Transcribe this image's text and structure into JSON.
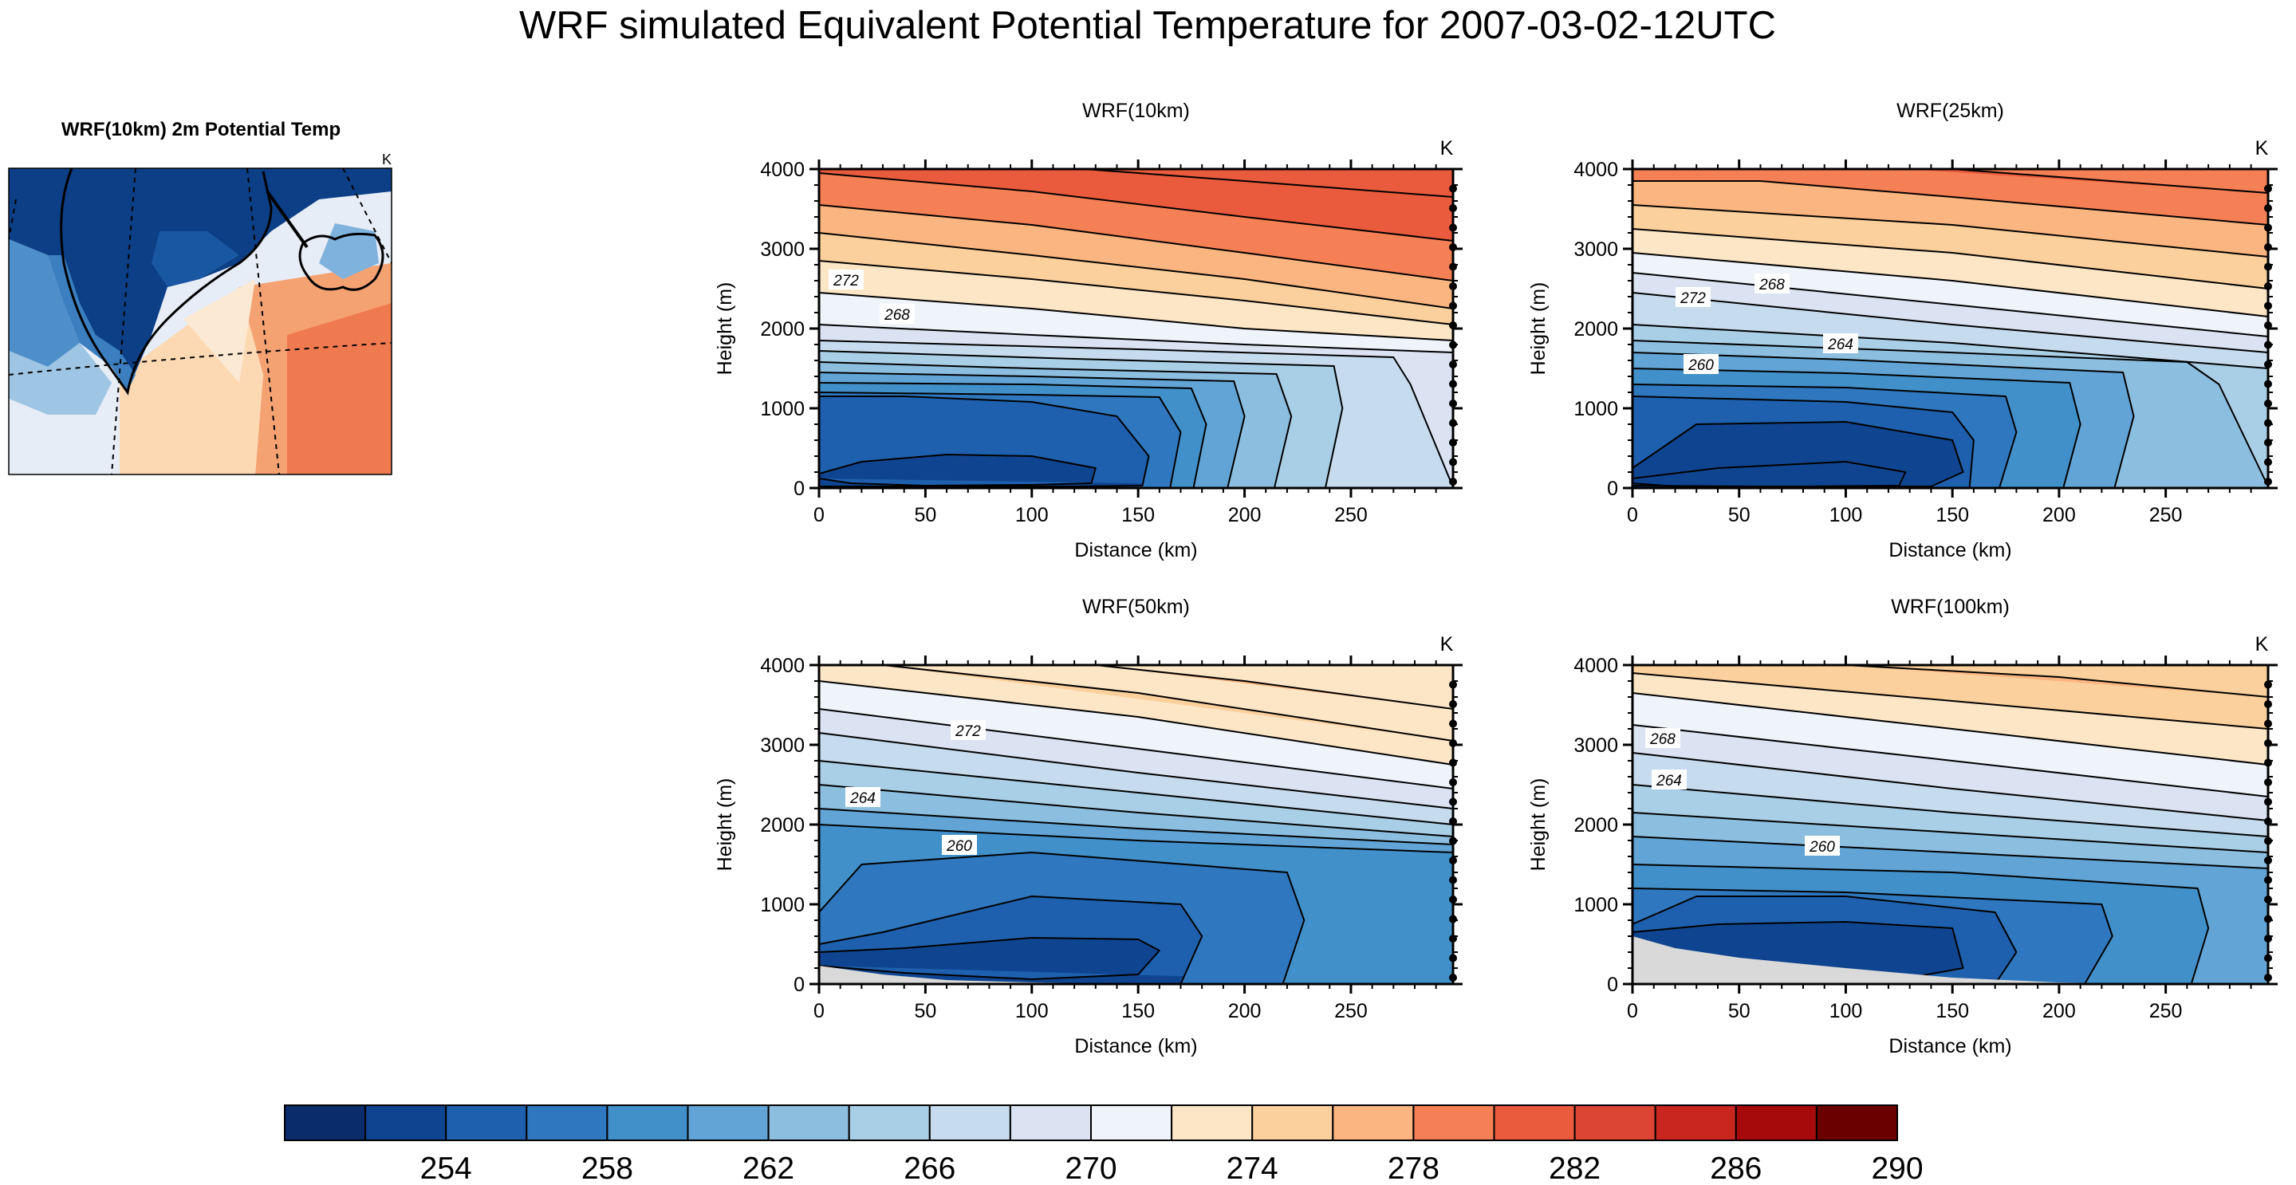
{
  "title": "WRF simulated Equivalent Potential Temperature for 2007-03-02-12UTC",
  "map": {
    "title": "WRF(10km) 2m Potential Temp",
    "unit": "K"
  },
  "chart_data": [
    {
      "type": "contour",
      "title": "WRF(10km)",
      "unit": "K",
      "xlabel": "Distance (km)",
      "ylabel": "Height (m)",
      "xlim": [
        0,
        298
      ],
      "ylim": [
        0,
        4000
      ],
      "xticks": [
        "0",
        "50",
        "100",
        "150",
        "200",
        "250"
      ],
      "yticks": [
        "0",
        "1000",
        "2000",
        "3000",
        "4000"
      ],
      "contour_labels": [
        "272",
        "268"
      ],
      "surface_profile": [
        [
          0,
          0
        ],
        [
          298,
          0
        ]
      ],
      "levels": [
        {
          "value": 254,
          "x": [
            0,
            20,
            60,
            100,
            130,
            128,
            100,
            50,
            15,
            0
          ],
          "y": [
            180,
            330,
            420,
            400,
            250,
            60,
            40,
            30,
            60,
            120
          ]
        },
        {
          "value": 256,
          "x": [
            0,
            40,
            100,
            140,
            155,
            152,
            120,
            60,
            0
          ],
          "y": [
            1150,
            1150,
            1080,
            900,
            400,
            30,
            20,
            20,
            20
          ]
        },
        {
          "value": 258,
          "x": [
            0,
            100,
            160,
            170,
            165
          ],
          "y": [
            1200,
            1170,
            1140,
            700,
            0
          ]
        },
        {
          "value": 260,
          "x": [
            0,
            100,
            175,
            182,
            176
          ],
          "y": [
            1320,
            1300,
            1250,
            800,
            0
          ]
        },
        {
          "value": 262,
          "x": [
            0,
            100,
            195,
            200,
            192
          ],
          "y": [
            1450,
            1400,
            1340,
            900,
            0
          ]
        },
        {
          "value": 264,
          "x": [
            0,
            100,
            215,
            222,
            214
          ],
          "y": [
            1580,
            1500,
            1430,
            900,
            0
          ]
        },
        {
          "value": 266,
          "x": [
            0,
            120,
            242,
            246,
            238
          ],
          "y": [
            1720,
            1620,
            1530,
            1000,
            0
          ]
        },
        {
          "value": 268,
          "x": [
            0,
            150,
            270,
            278,
            298
          ],
          "y": [
            1850,
            1740,
            1640,
            1300,
            10
          ]
        },
        {
          "value": 270,
          "x": [
            0,
            100,
            200,
            298
          ],
          "y": [
            2050,
            1920,
            1800,
            1700
          ]
        },
        {
          "value": 272,
          "x": [
            0,
            100,
            200,
            298
          ],
          "y": [
            2450,
            2250,
            2000,
            1850
          ]
        },
        {
          "value": 274,
          "x": [
            0,
            100,
            200,
            298
          ],
          "y": [
            2850,
            2620,
            2350,
            2050
          ]
        },
        {
          "value": 276,
          "x": [
            0,
            100,
            200,
            298
          ],
          "y": [
            3200,
            2920,
            2620,
            2250
          ]
        },
        {
          "value": 278,
          "x": [
            0,
            100,
            200,
            298
          ],
          "y": [
            3550,
            3300,
            2950,
            2600
          ]
        },
        {
          "value": 280,
          "x": [
            0,
            100,
            200,
            298
          ],
          "y": [
            3950,
            3720,
            3400,
            3100
          ]
        },
        {
          "value": 282,
          "x": [
            100,
            200,
            298
          ],
          "y": [
            4050,
            3850,
            3650
          ]
        }
      ]
    },
    {
      "type": "contour",
      "title": "WRF(25km)",
      "unit": "K",
      "xlabel": "Distance (km)",
      "ylabel": "Height (m)",
      "xlim": [
        0,
        298
      ],
      "ylim": [
        0,
        4000
      ],
      "xticks": [
        "0",
        "50",
        "100",
        "150",
        "200",
        "250"
      ],
      "yticks": [
        "0",
        "1000",
        "2000",
        "3000",
        "4000"
      ],
      "contour_labels": [
        "272",
        "268",
        "264",
        "260"
      ],
      "surface_profile": [
        [
          0,
          0
        ],
        [
          298,
          0
        ]
      ],
      "levels": [
        {
          "value": 252,
          "x": [
            0,
            40,
            100,
            128,
            125,
            80,
            20,
            0
          ],
          "y": [
            120,
            250,
            330,
            200,
            30,
            20,
            20,
            60
          ]
        },
        {
          "value": 254,
          "x": [
            0,
            30,
            100,
            150,
            155,
            140,
            60,
            0
          ],
          "y": [
            250,
            800,
            830,
            600,
            200,
            20,
            20,
            30
          ]
        },
        {
          "value": 256,
          "x": [
            0,
            100,
            150,
            160,
            158
          ],
          "y": [
            1150,
            1080,
            950,
            600,
            0
          ]
        },
        {
          "value": 258,
          "x": [
            0,
            100,
            175,
            180,
            172
          ],
          "y": [
            1300,
            1260,
            1150,
            700,
            0
          ]
        },
        {
          "value": 260,
          "x": [
            0,
            100,
            205,
            210,
            202
          ],
          "y": [
            1500,
            1440,
            1320,
            800,
            0
          ]
        },
        {
          "value": 262,
          "x": [
            0,
            100,
            230,
            235,
            226
          ],
          "y": [
            1700,
            1610,
            1450,
            900,
            0
          ]
        },
        {
          "value": 264,
          "x": [
            0,
            130,
            260,
            275,
            298
          ],
          "y": [
            1850,
            1720,
            1580,
            1300,
            20
          ]
        },
        {
          "value": 266,
          "x": [
            0,
            150,
            298
          ],
          "y": [
            2050,
            1820,
            1500
          ]
        },
        {
          "value": 268,
          "x": [
            0,
            150,
            298
          ],
          "y": [
            2450,
            2050,
            1700
          ]
        },
        {
          "value": 270,
          "x": [
            0,
            150,
            298
          ],
          "y": [
            2700,
            2300,
            1900
          ]
        },
        {
          "value": 272,
          "x": [
            0,
            150,
            298
          ],
          "y": [
            2950,
            2600,
            2150
          ]
        },
        {
          "value": 274,
          "x": [
            0,
            150,
            298
          ],
          "y": [
            3250,
            2950,
            2500
          ]
        },
        {
          "value": 276,
          "x": [
            0,
            150,
            298
          ],
          "y": [
            3550,
            3300,
            2900
          ]
        },
        {
          "value": 278,
          "x": [
            0,
            60,
            150,
            298
          ],
          "y": [
            3850,
            3850,
            3650,
            3300
          ]
        },
        {
          "value": 280,
          "x": [
            100,
            150,
            200,
            298
          ],
          "y": [
            4050,
            4000,
            3900,
            3700
          ]
        }
      ]
    },
    {
      "type": "contour",
      "title": "WRF(50km)",
      "unit": "K",
      "xlabel": "Distance (km)",
      "ylabel": "Height (m)",
      "xlim": [
        0,
        298
      ],
      "ylim": [
        0,
        4000
      ],
      "xticks": [
        "0",
        "50",
        "100",
        "150",
        "200",
        "250"
      ],
      "yticks": [
        "0",
        "1000",
        "2000",
        "3000",
        "4000"
      ],
      "contour_labels": [
        "272",
        "264",
        "260"
      ],
      "surface_profile": [
        [
          0,
          230
        ],
        [
          30,
          120
        ],
        [
          60,
          50
        ],
        [
          100,
          20
        ],
        [
          160,
          0
        ],
        [
          298,
          0
        ]
      ],
      "levels": [
        {
          "value": 254,
          "x": [
            0,
            40,
            100,
            150,
            160,
            150,
            100,
            40,
            0
          ],
          "y": [
            400,
            450,
            580,
            560,
            420,
            120,
            60,
            140,
            230
          ]
        },
        {
          "value": 256,
          "x": [
            0,
            30,
            100,
            170,
            180,
            170,
            100
          ],
          "y": [
            500,
            650,
            1100,
            1000,
            600,
            0,
            0
          ]
        },
        {
          "value": 258,
          "x": [
            0,
            20,
            100,
            220,
            228,
            218
          ],
          "y": [
            900,
            1500,
            1650,
            1400,
            800,
            0
          ]
        },
        {
          "value": 260,
          "x": [
            0,
            150,
            298
          ],
          "y": [
            2000,
            1800,
            1650
          ]
        },
        {
          "value": 262,
          "x": [
            0,
            150,
            298
          ],
          "y": [
            2200,
            1950,
            1750
          ]
        },
        {
          "value": 264,
          "x": [
            0,
            150,
            298
          ],
          "y": [
            2500,
            2150,
            1850
          ]
        },
        {
          "value": 266,
          "x": [
            0,
            150,
            298
          ],
          "y": [
            2800,
            2400,
            2000
          ]
        },
        {
          "value": 268,
          "x": [
            0,
            150,
            298
          ],
          "y": [
            3150,
            2650,
            2200
          ]
        },
        {
          "value": 270,
          "x": [
            0,
            150,
            298
          ],
          "y": [
            3450,
            2950,
            2450
          ]
        },
        {
          "value": 272,
          "x": [
            0,
            150,
            298
          ],
          "y": [
            3800,
            3350,
            2750
          ]
        },
        {
          "value": 274,
          "x": [
            30,
            150,
            298
          ],
          "y": [
            4000,
            3650,
            3050
          ]
        },
        {
          "value": 276,
          "x": [
            130,
            200,
            298
          ],
          "y": [
            4000,
            3800,
            3450
          ]
        }
      ]
    },
    {
      "type": "contour",
      "title": "WRF(100km)",
      "unit": "K",
      "xlabel": "Distance (km)",
      "ylabel": "Height (m)",
      "xlim": [
        0,
        298
      ],
      "ylim": [
        0,
        4000
      ],
      "xticks": [
        "0",
        "50",
        "100",
        "150",
        "200",
        "250"
      ],
      "yticks": [
        "0",
        "1000",
        "2000",
        "3000",
        "4000"
      ],
      "contour_labels": [
        "268",
        "264",
        "260"
      ],
      "surface_profile": [
        [
          0,
          600
        ],
        [
          20,
          450
        ],
        [
          50,
          330
        ],
        [
          100,
          200
        ],
        [
          150,
          80
        ],
        [
          200,
          20
        ],
        [
          250,
          0
        ],
        [
          298,
          0
        ]
      ],
      "levels": [
        {
          "value": 254,
          "x": [
            0,
            40,
            100,
            150,
            155,
            130
          ],
          "y": [
            650,
            750,
            780,
            700,
            200,
            80
          ]
        },
        {
          "value": 256,
          "x": [
            0,
            30,
            100,
            170,
            180,
            170
          ],
          "y": [
            750,
            1100,
            1100,
            900,
            400,
            0
          ]
        },
        {
          "value": 258,
          "x": [
            0,
            100,
            220,
            225,
            212
          ],
          "y": [
            1200,
            1150,
            1000,
            600,
            0
          ]
        },
        {
          "value": 260,
          "x": [
            0,
            150,
            265,
            270,
            262
          ],
          "y": [
            1500,
            1400,
            1200,
            700,
            0
          ]
        },
        {
          "value": 262,
          "x": [
            0,
            150,
            298
          ],
          "y": [
            1850,
            1650,
            1450
          ]
        },
        {
          "value": 264,
          "x": [
            0,
            150,
            298
          ],
          "y": [
            2150,
            1900,
            1650
          ]
        },
        {
          "value": 266,
          "x": [
            0,
            150,
            298
          ],
          "y": [
            2500,
            2150,
            1850
          ]
        },
        {
          "value": 268,
          "x": [
            0,
            150,
            298
          ],
          "y": [
            2900,
            2450,
            2050
          ]
        },
        {
          "value": 270,
          "x": [
            0,
            150,
            298
          ],
          "y": [
            3250,
            2800,
            2350
          ]
        },
        {
          "value": 272,
          "x": [
            0,
            150,
            298
          ],
          "y": [
            3650,
            3200,
            2750
          ]
        },
        {
          "value": 274,
          "x": [
            0,
            150,
            298
          ],
          "y": [
            3900,
            3550,
            3200
          ]
        },
        {
          "value": 276,
          "x": [
            100,
            200,
            298
          ],
          "y": [
            4000,
            3850,
            3600
          ]
        }
      ]
    }
  ],
  "colorbar": {
    "levels": [
      252,
      254,
      256,
      258,
      260,
      262,
      264,
      266,
      268,
      270,
      272,
      274,
      276,
      278,
      280,
      282,
      284,
      286,
      288,
      290
    ],
    "labels": [
      "254",
      "258",
      "262",
      "266",
      "270",
      "274",
      "278",
      "282",
      "286",
      "290"
    ],
    "colors": [
      "#0b2c6b",
      "#0f4590",
      "#1e60ae",
      "#2f77be",
      "#4190c9",
      "#61a4d5",
      "#8cbedf",
      "#a9cfe7",
      "#c6dbee",
      "#dbe3f3",
      "#eff3fa",
      "#fde6c6",
      "#fcd09c",
      "#fbb580",
      "#f68055",
      "#ea5b3e",
      "#dc4433",
      "#c8261e",
      "#a70a0a",
      "#6b0000"
    ]
  }
}
